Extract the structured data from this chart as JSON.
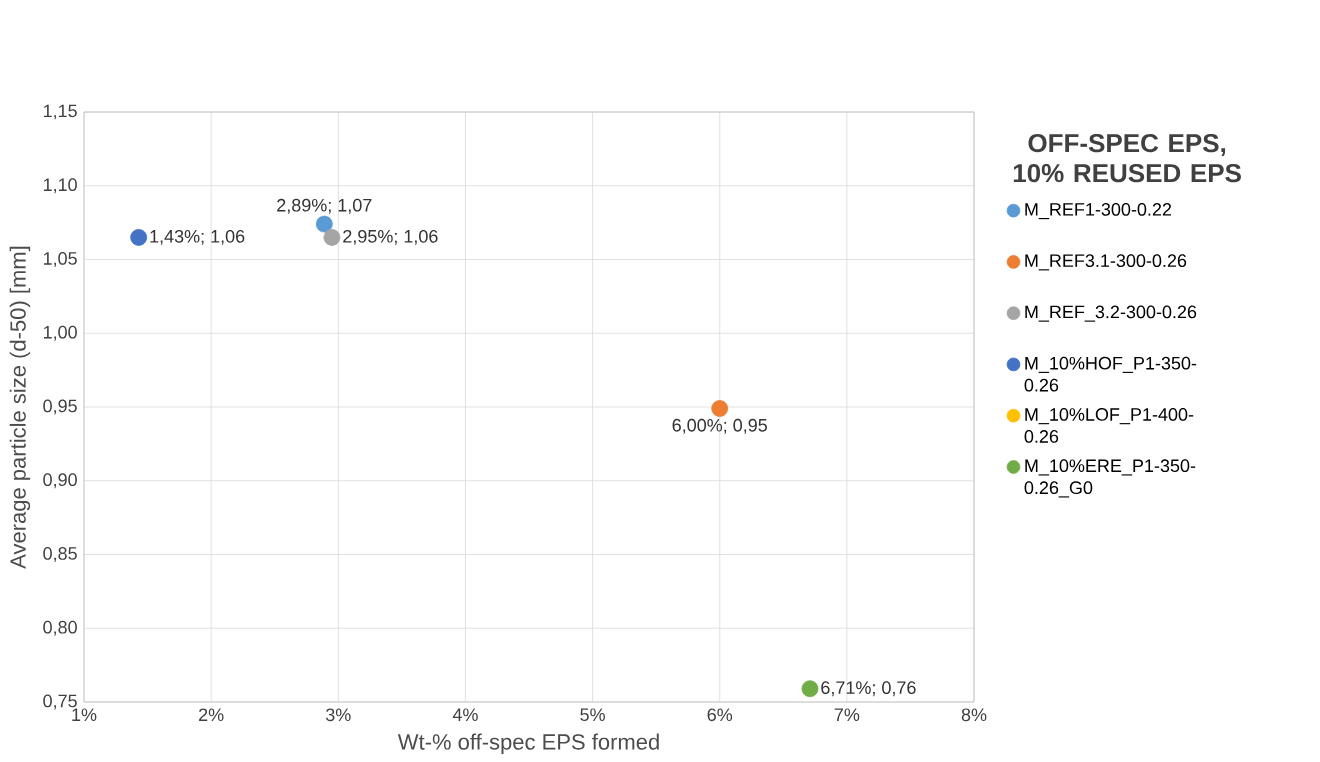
{
  "chart_data": {
    "type": "scatter",
    "xlabel": "Wt-% off-spec EPS formed",
    "ylabel": "Average particle size (d-50) [mm]",
    "legend_title": "OFF-SPEC EPS, 10% REUSED EPS",
    "xlim": [
      1,
      8
    ],
    "ylim": [
      0.75,
      1.15
    ],
    "xticks": [
      {
        "value": 1,
        "label": "1%"
      },
      {
        "value": 2,
        "label": "2%"
      },
      {
        "value": 3,
        "label": "3%"
      },
      {
        "value": 4,
        "label": "4%"
      },
      {
        "value": 5,
        "label": "5%"
      },
      {
        "value": 6,
        "label": "6%"
      },
      {
        "value": 7,
        "label": "7%"
      },
      {
        "value": 8,
        "label": "8%"
      }
    ],
    "yticks": [
      {
        "value": 0.75,
        "label": "0,75"
      },
      {
        "value": 0.8,
        "label": "0,80"
      },
      {
        "value": 0.85,
        "label": "0,85"
      },
      {
        "value": 0.9,
        "label": "0,90"
      },
      {
        "value": 0.95,
        "label": "0,95"
      },
      {
        "value": 1.0,
        "label": "1,00"
      },
      {
        "value": 1.05,
        "label": "1,05"
      },
      {
        "value": 1.1,
        "label": "1,10"
      },
      {
        "value": 1.15,
        "label": "1,15"
      }
    ],
    "grid": true,
    "legend": "right",
    "marker": "circle",
    "series": [
      {
        "name": "M_REF1-300-0.22",
        "color": "#5b9bd5",
        "x": [
          2.89
        ],
        "values": [
          1.074
        ],
        "value_labels": [
          "2,89%; 1,07"
        ]
      },
      {
        "name": "M_REF3.1-300-0.26",
        "color": "#ed7d31",
        "x": [
          6.0
        ],
        "values": [
          0.949
        ],
        "value_labels": [
          "6,00%; 0,95"
        ]
      },
      {
        "name": "M_REF_3.2-300-0.26",
        "color": "#a5a5a5",
        "x": [
          2.95
        ],
        "values": [
          1.065
        ],
        "value_labels": [
          "2,95%; 1,06"
        ]
      },
      {
        "name": "M_10%HOF_P1-350-0.26",
        "color": "#4472c4",
        "x": [
          1.43
        ],
        "values": [
          1.065
        ],
        "value_labels": [
          "1,43%; 1,06"
        ]
      },
      {
        "name": "M_10%LOF_P1-400-0.26",
        "color": "#ffc000",
        "x": [
          null
        ],
        "values": [
          null
        ],
        "value_labels": [
          null
        ]
      },
      {
        "name": "M_10%ERE_P1-350-0.26_G0",
        "color": "#70ad47",
        "x": [
          6.71
        ],
        "values": [
          0.759
        ],
        "value_labels": [
          "6,71%; 0,76"
        ]
      }
    ]
  }
}
